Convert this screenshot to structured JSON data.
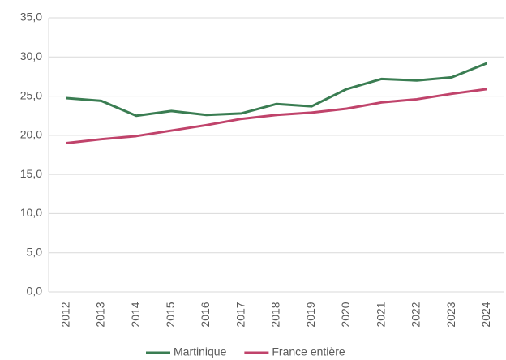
{
  "chart_data": {
    "type": "line",
    "categories": [
      "2012",
      "2013",
      "2014",
      "2015",
      "2016",
      "2017",
      "2018",
      "2019",
      "2020",
      "2021",
      "2022",
      "2023",
      "2024"
    ],
    "series": [
      {
        "name": "Martinique",
        "color": "#3a7d52",
        "values": [
          24.75,
          24.4,
          22.5,
          23.1,
          22.6,
          22.8,
          24.0,
          23.7,
          25.9,
          27.2,
          27.0,
          27.4,
          29.2
        ]
      },
      {
        "name": "France entière",
        "color": "#c0436b",
        "values": [
          19.0,
          19.5,
          19.9,
          20.6,
          21.3,
          22.1,
          22.6,
          22.9,
          23.4,
          24.2,
          24.6,
          25.3,
          25.9
        ]
      }
    ],
    "ylim": [
      0,
      35
    ],
    "yticks": [
      {
        "value": 0,
        "label": "0,0"
      },
      {
        "value": 5,
        "label": "5,0"
      },
      {
        "value": 10,
        "label": "10,0"
      },
      {
        "value": 15,
        "label": "15,0"
      },
      {
        "value": 20,
        "label": "20,0"
      },
      {
        "value": 25,
        "label": "25,0"
      },
      {
        "value": 30,
        "label": "30,0"
      },
      {
        "value": 35,
        "label": "35,0"
      }
    ],
    "grid": true,
    "legend": "bottom"
  }
}
